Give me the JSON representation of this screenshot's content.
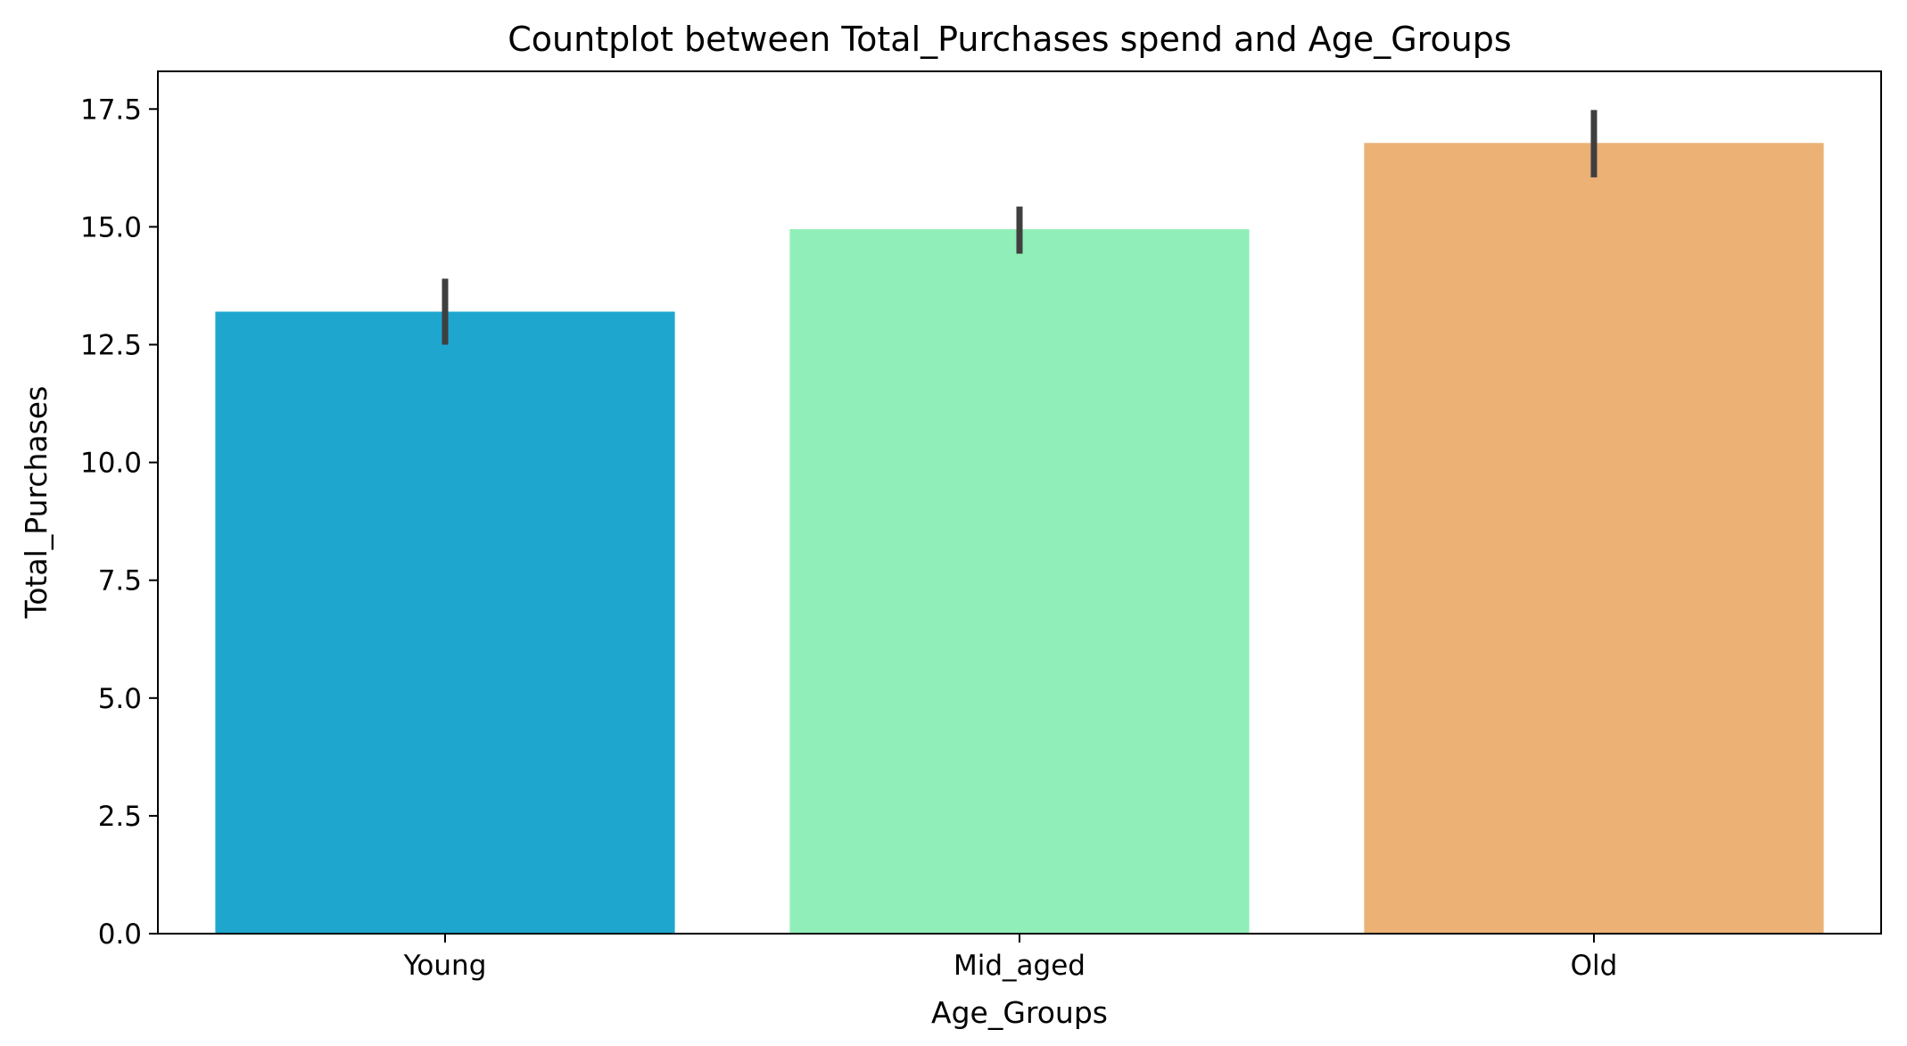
{
  "chart_data": {
    "type": "bar",
    "title": "Countplot between Total_Purchases spend and Age_Groups",
    "xlabel": "Age_Groups",
    "ylabel": "Total_Purchases",
    "categories": [
      "Young",
      "Mid_aged",
      "Old"
    ],
    "values": [
      13.2,
      14.95,
      16.78
    ],
    "error_bars": [
      {
        "low": 12.5,
        "high": 13.9
      },
      {
        "low": 14.43,
        "high": 15.43
      },
      {
        "low": 16.05,
        "high": 17.48
      }
    ],
    "colors": [
      "#1fa6cf",
      "#90efb8",
      "#ebb175"
    ],
    "error_bar_color": "#3f3f3f",
    "ylim": [
      0,
      18.3
    ],
    "yticks": [
      0.0,
      2.5,
      5.0,
      7.5,
      10.0,
      12.5,
      15.0,
      17.5
    ],
    "ytick_labels": [
      "0.0",
      "2.5",
      "5.0",
      "7.5",
      "10.0",
      "12.5",
      "15.0",
      "17.5"
    ],
    "grid": false,
    "legend": "none"
  }
}
